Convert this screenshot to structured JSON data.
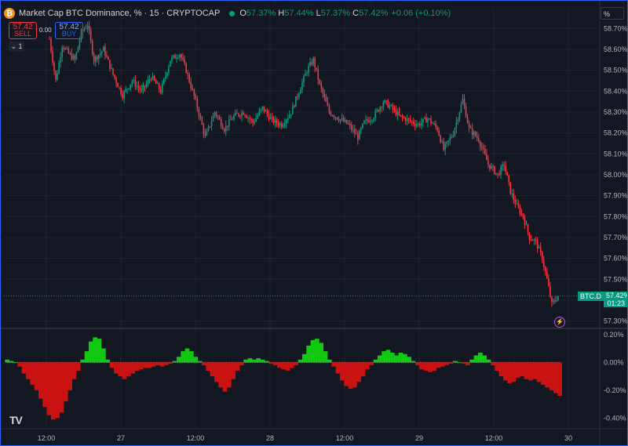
{
  "header": {
    "title": "Market Cap BTC Dominance, % · 15 · CRYPTOCAP",
    "btc_symbol": "₿",
    "o_label": "O",
    "o_value": "57.37%",
    "h_label": "H",
    "h_value": "57.44%",
    "l_label": "L",
    "l_value": "57.37%",
    "c_label": "C",
    "c_value": "57.42%",
    "change": "+0.06 (+0.10%)"
  },
  "trade": {
    "sell_price": "57.42",
    "sell_label": "SELL",
    "spread": "0.00",
    "buy_price": "57.42",
    "buy_label": "BUY"
  },
  "collapse_label": "⌄ 1",
  "scale_mode": "%",
  "price_tag": {
    "symbol": "BTC.D",
    "price": "57.42%",
    "countdown": "01:23"
  },
  "logo_text": "TV",
  "colors": {
    "up": "#089981",
    "down": "#f23645",
    "hist_pos": "#12c912",
    "hist_neg": "#c91212",
    "background": "#131722",
    "grid": "#1f2330"
  },
  "chart_data": [
    {
      "type": "candlestick",
      "title": "Market Cap BTC Dominance, %",
      "interval": "15",
      "xlabel": "",
      "ylabel": "",
      "x_ticks": [
        "12:00",
        "27",
        "12:00",
        "28",
        "12:00",
        "29",
        "12:00",
        "30"
      ],
      "y_ticks": [
        "57.30%",
        "57.40%",
        "57.50%",
        "57.60%",
        "57.70%",
        "57.80%",
        "57.90%",
        "58.00%",
        "58.10%",
        "58.20%",
        "58.30%",
        "58.40%",
        "58.50%",
        "58.60%",
        "58.70%"
      ],
      "ylim": [
        57.28,
        58.72
      ],
      "close_path": [
        [
          0,
          58.65
        ],
        [
          4,
          58.45
        ],
        [
          8,
          58.62
        ],
        [
          12,
          58.58
        ],
        [
          16,
          58.55
        ],
        [
          20,
          58.68
        ],
        [
          24,
          58.72
        ],
        [
          28,
          58.55
        ],
        [
          34,
          58.6
        ],
        [
          40,
          58.48
        ],
        [
          46,
          58.38
        ],
        [
          52,
          58.45
        ],
        [
          58,
          58.4
        ],
        [
          64,
          58.47
        ],
        [
          70,
          58.4
        ],
        [
          76,
          58.55
        ],
        [
          82,
          58.58
        ],
        [
          86,
          58.5
        ],
        [
          92,
          58.35
        ],
        [
          98,
          58.18
        ],
        [
          104,
          58.3
        ],
        [
          110,
          58.22
        ],
        [
          116,
          58.28
        ],
        [
          122,
          58.3
        ],
        [
          128,
          58.25
        ],
        [
          134,
          58.32
        ],
        [
          140,
          58.26
        ],
        [
          146,
          58.24
        ],
        [
          152,
          58.3
        ],
        [
          156,
          58.38
        ],
        [
          162,
          58.5
        ],
        [
          166,
          58.55
        ],
        [
          170,
          58.43
        ],
        [
          176,
          58.3
        ],
        [
          182,
          58.27
        ],
        [
          188,
          58.24
        ],
        [
          194,
          58.18
        ],
        [
          198,
          58.25
        ],
        [
          204,
          58.28
        ],
        [
          210,
          58.35
        ],
        [
          214,
          58.33
        ],
        [
          220,
          58.28
        ],
        [
          226,
          58.26
        ],
        [
          232,
          58.24
        ],
        [
          238,
          58.27
        ],
        [
          244,
          58.22
        ],
        [
          248,
          58.12
        ],
        [
          254,
          58.2
        ],
        [
          260,
          58.36
        ],
        [
          264,
          58.22
        ],
        [
          270,
          58.17
        ],
        [
          276,
          58.05
        ],
        [
          282,
          58.0
        ],
        [
          286,
          58.05
        ],
        [
          290,
          57.92
        ],
        [
          294,
          57.85
        ],
        [
          298,
          57.8
        ],
        [
          302,
          57.7
        ],
        [
          306,
          57.68
        ],
        [
          310,
          57.6
        ],
        [
          313,
          57.5
        ],
        [
          316,
          57.38
        ],
        [
          320,
          57.42
        ]
      ],
      "last": 57.42
    },
    {
      "type": "bar",
      "title": "",
      "y_ticks": [
        "0.20%",
        "0.00%",
        "-0.20%",
        "-0.40%"
      ],
      "ylim": [
        -0.42,
        0.21
      ],
      "series": [
        {
          "name": "",
          "values": [
            0.02,
            0.01,
            0.0,
            -0.03,
            -0.08,
            -0.12,
            -0.16,
            -0.2,
            -0.26,
            -0.32,
            -0.38,
            -0.41,
            -0.4,
            -0.36,
            -0.28,
            -0.2,
            -0.12,
            -0.06,
            0.02,
            0.08,
            0.15,
            0.18,
            0.17,
            0.1,
            0.02,
            -0.04,
            -0.08,
            -0.1,
            -0.12,
            -0.1,
            -0.08,
            -0.06,
            -0.05,
            -0.04,
            -0.04,
            -0.03,
            -0.02,
            -0.03,
            -0.02,
            -0.01,
            0.01,
            0.04,
            0.08,
            0.1,
            0.08,
            0.04,
            0.01,
            -0.02,
            -0.06,
            -0.1,
            -0.14,
            -0.18,
            -0.21,
            -0.18,
            -0.12,
            -0.06,
            -0.02,
            0.02,
            0.03,
            0.02,
            0.03,
            0.02,
            0.01,
            -0.01,
            -0.02,
            -0.04,
            -0.05,
            -0.06,
            -0.04,
            -0.02,
            0.02,
            0.06,
            0.12,
            0.16,
            0.17,
            0.14,
            0.08,
            0.02,
            -0.03,
            -0.08,
            -0.13,
            -0.17,
            -0.19,
            -0.18,
            -0.14,
            -0.1,
            -0.05,
            -0.02,
            0.02,
            0.05,
            0.08,
            0.09,
            0.07,
            0.05,
            0.07,
            0.06,
            0.04,
            0.01,
            -0.02,
            -0.05,
            -0.06,
            -0.07,
            -0.06,
            -0.04,
            -0.03,
            -0.02,
            -0.01,
            0.01,
            0.0,
            -0.01,
            -0.02,
            0.02,
            0.05,
            0.07,
            0.05,
            0.02,
            -0.02,
            -0.06,
            -0.1,
            -0.13,
            -0.15,
            -0.14,
            -0.11,
            -0.1,
            -0.12,
            -0.13,
            -0.12,
            -0.14,
            -0.16,
            -0.18,
            -0.2,
            -0.22,
            -0.24
          ]
        }
      ]
    }
  ]
}
